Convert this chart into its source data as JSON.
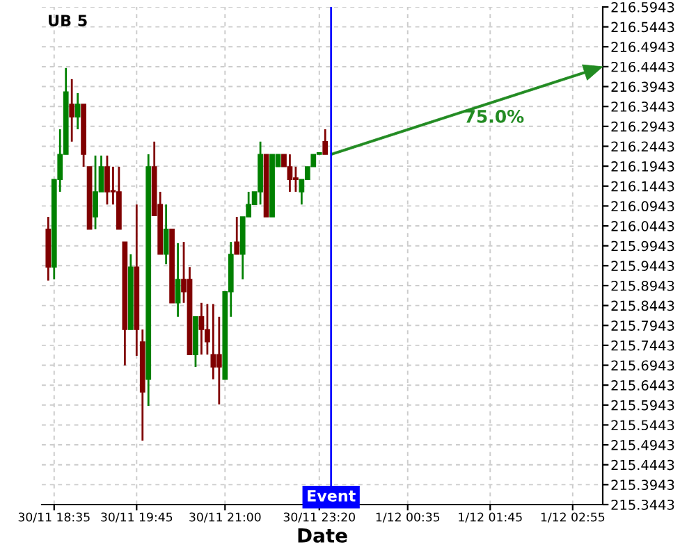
{
  "chart_data": {
    "type": "candlestick",
    "title": "UB 5",
    "xlabel": "Date",
    "categories": [
      null,
      "30/11 18:35",
      null,
      null,
      null,
      null,
      null,
      null,
      null,
      null,
      null,
      null,
      null,
      null,
      null,
      "30/11 19:45",
      null,
      null,
      null,
      null,
      null,
      null,
      null,
      null,
      null,
      null,
      null,
      null,
      null,
      null,
      "30/11 21:00",
      null,
      null,
      null,
      null,
      null,
      null,
      null,
      null,
      null,
      null,
      null,
      null,
      null,
      null,
      null,
      "30/11 23:20",
      null,
      null,
      null,
      null,
      null,
      null,
      null,
      null,
      null,
      null,
      null,
      null,
      null,
      null,
      "1/12 00:35",
      null,
      null,
      null,
      null,
      null,
      null,
      null,
      null,
      null,
      null,
      null,
      null,
      null,
      "1/12 01:45",
      null,
      null,
      null,
      null,
      null,
      null,
      null,
      null,
      null,
      null,
      null,
      null,
      null,
      "1/12 02:55",
      null,
      null,
      null,
      null,
      null
    ],
    "ohlc": [
      [
        216.036,
        216.067,
        215.907,
        215.941
      ],
      [
        215.941,
        216.161,
        215.91,
        216.161
      ],
      [
        216.161,
        216.287,
        216.13,
        216.224
      ],
      [
        216.224,
        216.441,
        216.224,
        216.381
      ],
      [
        216.35,
        216.413,
        216.256,
        216.318
      ],
      [
        216.318,
        216.378,
        216.287,
        216.35
      ],
      [
        216.35,
        216.35,
        216.193,
        216.224
      ],
      [
        216.193,
        216.193,
        216.036,
        216.036
      ],
      [
        216.067,
        216.221,
        216.036,
        216.13
      ],
      [
        216.13,
        216.221,
        216.13,
        216.193
      ],
      [
        216.193,
        216.221,
        216.098,
        216.13
      ],
      [
        216.133,
        216.193,
        216.098,
        216.13
      ],
      [
        216.13,
        216.193,
        216.036,
        216.036
      ],
      [
        216.004,
        216.004,
        215.694,
        215.784
      ],
      [
        215.784,
        215.973,
        215.784,
        215.941
      ],
      [
        215.941,
        216.098,
        215.718,
        215.784
      ],
      [
        215.753,
        215.784,
        215.505,
        215.627
      ],
      [
        215.659,
        216.224,
        215.592,
        216.193
      ],
      [
        216.193,
        216.256,
        216.07,
        216.07
      ],
      [
        216.098,
        216.13,
        215.973,
        215.973
      ],
      [
        215.973,
        216.098,
        215.948,
        216.036
      ],
      [
        216.036,
        216.036,
        215.851,
        215.851
      ],
      [
        215.851,
        216.001,
        215.816,
        215.91
      ],
      [
        215.91,
        216.004,
        215.851,
        215.879
      ],
      [
        215.91,
        215.941,
        215.721,
        215.721
      ],
      [
        215.721,
        215.816,
        215.69,
        215.816
      ],
      [
        215.816,
        215.851,
        215.721,
        215.784
      ],
      [
        215.784,
        215.848,
        215.721,
        215.753
      ],
      [
        215.721,
        215.848,
        215.659,
        215.69
      ],
      [
        215.721,
        215.816,
        215.596,
        215.69
      ],
      [
        215.659,
        215.879,
        215.659,
        215.879
      ],
      [
        215.879,
        216.004,
        215.816,
        215.973
      ],
      [
        216.004,
        216.067,
        215.973,
        215.973
      ],
      [
        215.973,
        216.067,
        215.91,
        216.067
      ],
      [
        216.067,
        216.13,
        216.067,
        216.098
      ],
      [
        216.098,
        216.13,
        216.098,
        216.13
      ],
      [
        216.13,
        216.256,
        216.098,
        216.224
      ],
      [
        216.224,
        216.224,
        216.067,
        216.067
      ],
      [
        216.067,
        216.224,
        216.067,
        216.224
      ],
      [
        216.193,
        216.224,
        216.193,
        216.224
      ],
      [
        216.224,
        216.224,
        216.193,
        216.193
      ],
      [
        216.193,
        216.224,
        216.13,
        216.161
      ],
      [
        216.161,
        216.193,
        216.13,
        216.165
      ],
      [
        216.13,
        216.161,
        216.098,
        216.161
      ],
      [
        216.161,
        216.193,
        216.161,
        216.193
      ],
      [
        216.193,
        216.224,
        216.193,
        216.224
      ],
      [
        216.224,
        216.228,
        216.224,
        216.228
      ],
      [
        216.256,
        216.287,
        216.224,
        216.224
      ],
      null,
      null,
      null,
      null,
      null,
      null,
      null,
      null,
      null,
      null,
      null,
      null,
      null,
      null,
      null,
      null,
      null,
      null,
      null,
      null,
      null,
      null,
      null,
      null,
      null,
      null,
      null,
      null,
      null,
      null,
      null,
      null,
      null,
      null,
      null,
      null,
      null,
      null,
      null,
      null,
      null,
      null,
      null,
      null,
      null,
      null,
      null
    ],
    "colors": [
      "#800000",
      "#008000",
      "#008000",
      "#008000",
      "#800000",
      "#008000",
      "#800000",
      "#800000",
      "#008000",
      "#008000",
      "#800000",
      "#800000",
      "#800000",
      "#800000",
      "#008000",
      "#800000",
      "#800000",
      "#008000",
      "#800000",
      "#800000",
      "#008000",
      "#800000",
      "#008000",
      "#800000",
      "#800000",
      "#008000",
      "#800000",
      "#800000",
      "#800000",
      "#800000",
      "#008000",
      "#008000",
      "#800000",
      "#008000",
      "#008000",
      "#008000",
      "#008000",
      "#800000",
      "#008000",
      "#008000",
      "#800000",
      "#800000",
      "#800000",
      "#008000",
      "#008000",
      "#008000",
      "#008000",
      "#800000",
      null,
      null,
      null,
      null,
      null,
      null,
      null,
      null,
      null,
      null,
      null,
      null,
      null,
      null,
      null,
      null,
      null,
      null,
      null,
      null,
      null,
      null,
      null,
      null,
      null,
      null,
      null,
      null,
      null,
      null,
      null,
      null,
      null,
      null,
      null,
      null,
      null,
      null,
      null,
      null,
      null,
      null,
      null,
      null,
      null,
      null,
      null
    ],
    "annotations": [
      "75.0%",
      "Event"
    ],
    "ylim": [
      215.3443,
      216.5943
    ],
    "yticks": [
      215.3443,
      215.3943,
      215.4443,
      215.4943,
      215.5443,
      215.5943,
      215.6443,
      215.6943,
      215.7443,
      215.7943,
      215.8443,
      215.8943,
      215.9443,
      215.9943,
      216.0443,
      216.0943,
      216.1443,
      216.1943,
      216.2443,
      216.2943,
      216.3443,
      216.3943,
      216.4443,
      216.4943,
      216.5443,
      216.5943
    ],
    "grid": true
  }
}
